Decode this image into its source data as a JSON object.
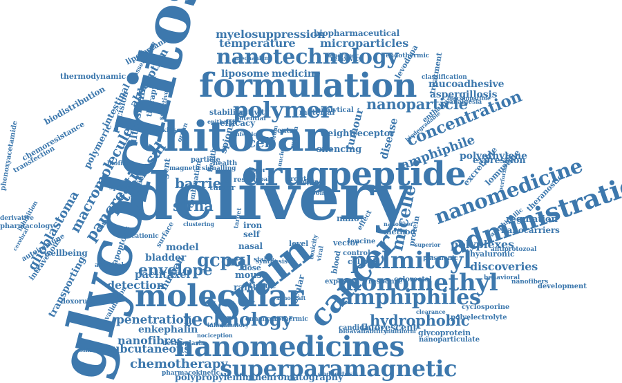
{
  "colors": {
    "accent": "#3d78ad",
    "background": "#ffffff"
  },
  "words": [
    "delivery",
    "glycolchitosan",
    "chitosan",
    "formulation",
    "brain",
    "molecular",
    "nanomedicines",
    "superparamagnetic",
    "drugpeptide",
    "administration",
    "nanotechnology",
    "cancer",
    "polymer",
    "monomethyl",
    "palmitoyl",
    "nanomedicine",
    "amphiphiles",
    "technology",
    "concentration",
    "nanoparticle",
    "hydrophobic",
    "micelle",
    "gcpq",
    "envelope",
    "oral",
    "amphiphile",
    "barrier",
    "sirna",
    "chemotherapy",
    "penetration",
    "pancreatic",
    "intranasal",
    "macromolecule",
    "myelosuppression",
    "microparticles",
    "temperature",
    "biopharmaceutical",
    "liposome",
    "medicine",
    "glioblastoma",
    "absorption",
    "intestinal",
    "polymeric",
    "ultrasmall",
    "polyplexes",
    "discoveries",
    "detection",
    "paclitaxel",
    "subcutaneous",
    "nanofibres",
    "polypropylenimine",
    "chromatography",
    "polyelectrolyte",
    "cyclosporine",
    "fluorescent",
    "nanoparticulate",
    "glycoprotein",
    "polyethylene",
    "regulation",
    "nanocarriers",
    "mucoadhesive",
    "aspergillosis",
    "expression",
    "lomustine",
    "theranostic",
    "enkephalin",
    "transporting",
    "bladder",
    "model",
    "mouse",
    "raman",
    "silencing",
    "weight",
    "receptor",
    "tumour",
    "disease",
    "spions",
    "cell",
    "thermodynamic",
    "lipofectamine",
    "biodistribution",
    "chemoresistance",
    "transfection",
    "phenoxyacetamide",
    "wellbeing",
    "intravenous",
    "autoimmune",
    "pharmacology",
    "doxorubicin",
    "validation",
    "human",
    "nano",
    "tissue",
    "ocular",
    "blood",
    "efficacy",
    "activity",
    "material",
    "analytical",
    "stability",
    "precision",
    "therapy",
    "levodopa",
    "treatment",
    "enthalpy",
    "exposure",
    "response",
    "colorectal",
    "candida",
    "leucine",
    "protein",
    "vector",
    "method",
    "nanofiber",
    "control",
    "dose",
    "nasal",
    "surface",
    "tumor",
    "iron",
    "self",
    "level",
    "effect",
    "colloid",
    "hyaluronic",
    "excretable",
    "classification",
    "endothermic",
    "relaxivity",
    "dendrimer",
    "mechanism",
    "biocompatible",
    "analgesia",
    "development",
    "nanofibers",
    "behavioral",
    "exothermic",
    "enhancer",
    "biodegradable",
    "multiform",
    "endocytosis",
    "pharmacokinetic",
    "nociception",
    "desmoplasia",
    "simulation",
    "apoptosis",
    "agent",
    "stable",
    "xenograft",
    "amphiphilic",
    "antiprotozoal",
    "plasmonic",
    "clearance",
    "inflammatory",
    "bioavailability",
    "superior",
    "cationic",
    "lentinula",
    "toxicity",
    "viral",
    "centre",
    "room",
    "route",
    "drop",
    "particle",
    "health",
    "parkinson",
    "biofilms",
    "specific",
    "magnetic",
    "potential",
    "healthy",
    "nuclei",
    "mucin",
    "signalling",
    "organ",
    "study",
    "result",
    "layer",
    "global",
    "target",
    "combination",
    "inhibition",
    "assembling",
    "cerebral",
    "synthesis",
    "selective",
    "infection",
    "epithelial",
    "performance",
    "derivative",
    "antiviral",
    "serum",
    "clustering",
    "detailed"
  ]
}
